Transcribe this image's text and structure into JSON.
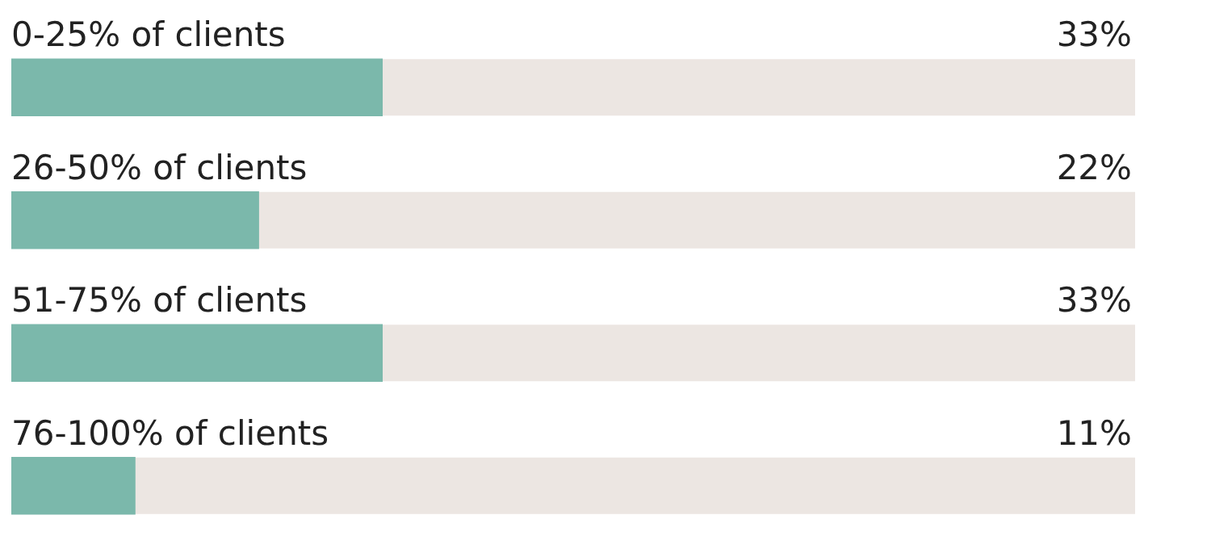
{
  "chart_data": {
    "type": "bar",
    "orientation": "horizontal",
    "categories": [
      "0-25% of clients",
      "26-50% of clients",
      "51-75% of clients",
      "76-100% of clients"
    ],
    "values": [
      33,
      22,
      33,
      11
    ],
    "color": "#7bb8ab",
    "value_labels": [
      "33%",
      "22%",
      "33%",
      "11%"
    ],
    "xlim": [
      0,
      100
    ],
    "tick_labels": false
  }
}
